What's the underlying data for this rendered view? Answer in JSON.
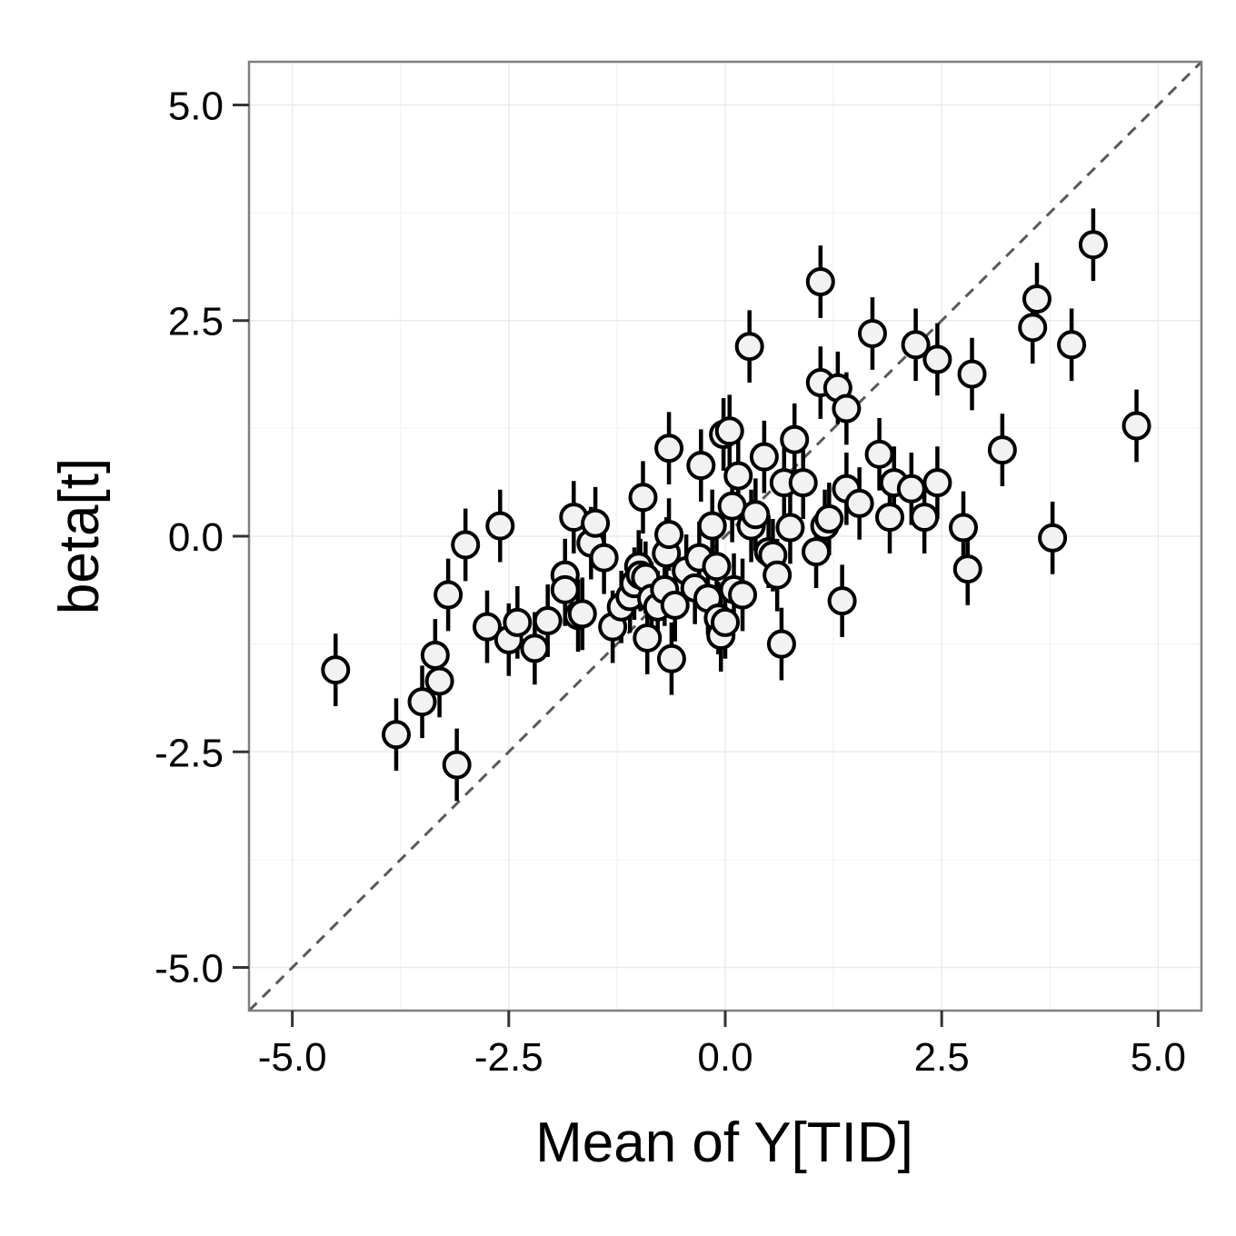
{
  "chart_data": {
    "type": "scatter",
    "xlabel": "Mean of Y[TID]",
    "ylabel": "beta[t]",
    "xlim": [
      -5.5,
      5.5
    ],
    "ylim": [
      -5.5,
      5.5
    ],
    "xticks": [
      "-5.0",
      "-2.5",
      "0.0",
      "2.5",
      "5.0"
    ],
    "yticks": [
      "-5.0",
      "-2.5",
      "0.0",
      "2.5",
      "5.0"
    ],
    "xtick_values": [
      -5,
      -2.5,
      0,
      2.5,
      5
    ],
    "ytick_values": [
      -5,
      -2.5,
      0,
      2.5,
      5
    ],
    "grid": true,
    "reference_line": "y = x (dashed)",
    "error_bar_halfwidth": 0.42,
    "points": [
      {
        "x": -4.5,
        "y": -1.55
      },
      {
        "x": -3.8,
        "y": -2.3
      },
      {
        "x": -3.5,
        "y": -1.92
      },
      {
        "x": -3.35,
        "y": -1.38
      },
      {
        "x": -3.3,
        "y": -1.68
      },
      {
        "x": -3.2,
        "y": -0.68
      },
      {
        "x": -3.1,
        "y": -2.65
      },
      {
        "x": -3.0,
        "y": -0.1
      },
      {
        "x": -2.75,
        "y": -1.05
      },
      {
        "x": -2.6,
        "y": 0.12
      },
      {
        "x": -2.5,
        "y": -1.2
      },
      {
        "x": -2.4,
        "y": -1.0
      },
      {
        "x": -2.2,
        "y": -1.3
      },
      {
        "x": -2.05,
        "y": -0.98
      },
      {
        "x": -1.85,
        "y": -0.45
      },
      {
        "x": -1.85,
        "y": -0.62
      },
      {
        "x": -1.75,
        "y": 0.22
      },
      {
        "x": -1.7,
        "y": -0.92
      },
      {
        "x": -1.65,
        "y": -0.9
      },
      {
        "x": -1.55,
        "y": -0.08
      },
      {
        "x": -1.5,
        "y": 0.15
      },
      {
        "x": -1.4,
        "y": -0.25
      },
      {
        "x": -1.3,
        "y": -1.05
      },
      {
        "x": -1.2,
        "y": -0.82
      },
      {
        "x": -1.1,
        "y": -0.7
      },
      {
        "x": -1.05,
        "y": -0.55
      },
      {
        "x": -1.0,
        "y": -0.35
      },
      {
        "x": -0.98,
        "y": -0.45
      },
      {
        "x": -0.95,
        "y": 0.45
      },
      {
        "x": -0.92,
        "y": -0.48
      },
      {
        "x": -0.9,
        "y": -1.18
      },
      {
        "x": -0.85,
        "y": -0.72
      },
      {
        "x": -0.78,
        "y": -0.82
      },
      {
        "x": -0.7,
        "y": -0.62
      },
      {
        "x": -0.68,
        "y": -0.2
      },
      {
        "x": -0.65,
        "y": 1.02
      },
      {
        "x": -0.65,
        "y": 0.02
      },
      {
        "x": -0.62,
        "y": -1.42
      },
      {
        "x": -0.58,
        "y": -0.8
      },
      {
        "x": -0.45,
        "y": -0.4
      },
      {
        "x": -0.35,
        "y": -0.6
      },
      {
        "x": -0.3,
        "y": -0.25
      },
      {
        "x": -0.28,
        "y": 0.82
      },
      {
        "x": -0.2,
        "y": -0.72
      },
      {
        "x": -0.15,
        "y": 0.12
      },
      {
        "x": -0.1,
        "y": -0.35
      },
      {
        "x": -0.08,
        "y": -0.95
      },
      {
        "x": -0.05,
        "y": -1.15
      },
      {
        "x": -0.02,
        "y": 1.18
      },
      {
        "x": 0.0,
        "y": -1.0
      },
      {
        "x": 0.05,
        "y": 1.22
      },
      {
        "x": 0.08,
        "y": 0.35
      },
      {
        "x": 0.1,
        "y": -0.62
      },
      {
        "x": 0.15,
        "y": 0.7
      },
      {
        "x": 0.2,
        "y": -0.68
      },
      {
        "x": 0.28,
        "y": 2.2
      },
      {
        "x": 0.3,
        "y": 0.12
      },
      {
        "x": 0.35,
        "y": 0.25
      },
      {
        "x": 0.45,
        "y": 0.92
      },
      {
        "x": 0.5,
        "y": -0.18
      },
      {
        "x": 0.55,
        "y": -0.22
      },
      {
        "x": 0.6,
        "y": -0.45
      },
      {
        "x": 0.65,
        "y": -1.25
      },
      {
        "x": 0.68,
        "y": 0.62
      },
      {
        "x": 0.75,
        "y": 0.1
      },
      {
        "x": 0.8,
        "y": 1.12
      },
      {
        "x": 0.9,
        "y": 0.62
      },
      {
        "x": 1.05,
        "y": -0.18
      },
      {
        "x": 1.1,
        "y": 1.78
      },
      {
        "x": 1.1,
        "y": 2.95
      },
      {
        "x": 1.15,
        "y": 0.12
      },
      {
        "x": 1.2,
        "y": 0.2
      },
      {
        "x": 1.3,
        "y": 1.72
      },
      {
        "x": 1.35,
        "y": -0.75
      },
      {
        "x": 1.4,
        "y": 1.48
      },
      {
        "x": 1.4,
        "y": 0.55
      },
      {
        "x": 1.55,
        "y": 0.38
      },
      {
        "x": 1.7,
        "y": 2.35
      },
      {
        "x": 1.78,
        "y": 0.95
      },
      {
        "x": 1.9,
        "y": 0.22
      },
      {
        "x": 1.95,
        "y": 0.62
      },
      {
        "x": 2.15,
        "y": 0.55
      },
      {
        "x": 2.2,
        "y": 2.22
      },
      {
        "x": 2.3,
        "y": 0.22
      },
      {
        "x": 2.45,
        "y": 0.62
      },
      {
        "x": 2.45,
        "y": 2.05
      },
      {
        "x": 2.75,
        "y": 0.1
      },
      {
        "x": 2.8,
        "y": -0.38
      },
      {
        "x": 2.85,
        "y": 1.88
      },
      {
        "x": 3.2,
        "y": 1.0
      },
      {
        "x": 3.55,
        "y": 2.42
      },
      {
        "x": 3.6,
        "y": 2.75
      },
      {
        "x": 3.78,
        "y": -0.02
      },
      {
        "x": 4.0,
        "y": 2.22
      },
      {
        "x": 4.25,
        "y": 3.38
      },
      {
        "x": 4.75,
        "y": 1.28
      }
    ]
  },
  "colors": {
    "panel_background": "#ffffff",
    "panel_border": "#7f7f7f",
    "grid_major": "#ebebeb",
    "grid_minor": "#f5f5f5",
    "reference_line": "#595959",
    "point_fill": "#f2f2f2",
    "point_stroke": "#000000",
    "error_bar": "#000000"
  }
}
